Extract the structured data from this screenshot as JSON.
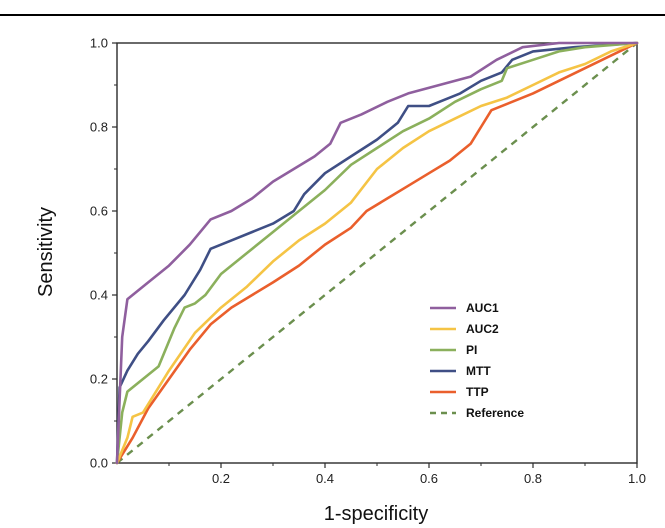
{
  "chart_data": {
    "type": "line",
    "title": "",
    "xlabel": "1-specificity",
    "ylabel": "Sensitivity",
    "xlim": [
      0,
      1
    ],
    "ylim": [
      0,
      1
    ],
    "x_ticks": [
      "0.2",
      "0.4",
      "0.6",
      "0.8",
      "1.0"
    ],
    "y_ticks": [
      "0.0",
      "0.2",
      "0.4",
      "0.6",
      "0.8",
      "1.0"
    ],
    "grid": false,
    "legend_position": "bottom-right",
    "series": [
      {
        "name": "AUC1",
        "color": "#8f5f9e",
        "dash": "solid",
        "points": [
          [
            0,
            0
          ],
          [
            0.005,
            0.15
          ],
          [
            0.01,
            0.3
          ],
          [
            0.02,
            0.39
          ],
          [
            0.03,
            0.4
          ],
          [
            0.06,
            0.43
          ],
          [
            0.1,
            0.47
          ],
          [
            0.14,
            0.52
          ],
          [
            0.18,
            0.58
          ],
          [
            0.22,
            0.6
          ],
          [
            0.26,
            0.63
          ],
          [
            0.3,
            0.67
          ],
          [
            0.34,
            0.7
          ],
          [
            0.38,
            0.73
          ],
          [
            0.41,
            0.76
          ],
          [
            0.43,
            0.81
          ],
          [
            0.47,
            0.83
          ],
          [
            0.52,
            0.86
          ],
          [
            0.56,
            0.88
          ],
          [
            0.62,
            0.9
          ],
          [
            0.68,
            0.92
          ],
          [
            0.73,
            0.96
          ],
          [
            0.78,
            0.99
          ],
          [
            0.85,
            1.0
          ],
          [
            1,
            1
          ]
        ]
      },
      {
        "name": "AUC2",
        "color": "#f5c445",
        "dash": "solid",
        "points": [
          [
            0,
            0
          ],
          [
            0.02,
            0.06
          ],
          [
            0.03,
            0.11
          ],
          [
            0.05,
            0.12
          ],
          [
            0.1,
            0.22
          ],
          [
            0.15,
            0.31
          ],
          [
            0.2,
            0.37
          ],
          [
            0.25,
            0.42
          ],
          [
            0.3,
            0.48
          ],
          [
            0.35,
            0.53
          ],
          [
            0.4,
            0.57
          ],
          [
            0.45,
            0.62
          ],
          [
            0.5,
            0.7
          ],
          [
            0.55,
            0.75
          ],
          [
            0.6,
            0.79
          ],
          [
            0.65,
            0.82
          ],
          [
            0.7,
            0.85
          ],
          [
            0.75,
            0.87
          ],
          [
            0.8,
            0.9
          ],
          [
            0.85,
            0.93
          ],
          [
            0.9,
            0.95
          ],
          [
            0.95,
            0.98
          ],
          [
            1,
            1
          ]
        ]
      },
      {
        "name": "PI",
        "color": "#8bb05c",
        "dash": "solid",
        "points": [
          [
            0,
            0
          ],
          [
            0.01,
            0.12
          ],
          [
            0.02,
            0.17
          ],
          [
            0.05,
            0.2
          ],
          [
            0.08,
            0.23
          ],
          [
            0.11,
            0.32
          ],
          [
            0.13,
            0.37
          ],
          [
            0.15,
            0.38
          ],
          [
            0.17,
            0.4
          ],
          [
            0.2,
            0.45
          ],
          [
            0.25,
            0.5
          ],
          [
            0.3,
            0.55
          ],
          [
            0.35,
            0.6
          ],
          [
            0.4,
            0.65
          ],
          [
            0.45,
            0.71
          ],
          [
            0.5,
            0.75
          ],
          [
            0.55,
            0.79
          ],
          [
            0.6,
            0.82
          ],
          [
            0.65,
            0.86
          ],
          [
            0.7,
            0.89
          ],
          [
            0.74,
            0.91
          ],
          [
            0.75,
            0.94
          ],
          [
            0.8,
            0.96
          ],
          [
            0.85,
            0.98
          ],
          [
            0.9,
            0.99
          ],
          [
            1,
            1
          ]
        ]
      },
      {
        "name": "MTT",
        "color": "#3f4f85",
        "dash": "solid",
        "points": [
          [
            0,
            0
          ],
          [
            0.005,
            0.18
          ],
          [
            0.02,
            0.22
          ],
          [
            0.04,
            0.26
          ],
          [
            0.06,
            0.29
          ],
          [
            0.09,
            0.34
          ],
          [
            0.13,
            0.4
          ],
          [
            0.16,
            0.46
          ],
          [
            0.18,
            0.51
          ],
          [
            0.22,
            0.53
          ],
          [
            0.26,
            0.55
          ],
          [
            0.3,
            0.57
          ],
          [
            0.34,
            0.6
          ],
          [
            0.36,
            0.64
          ],
          [
            0.4,
            0.69
          ],
          [
            0.45,
            0.73
          ],
          [
            0.5,
            0.77
          ],
          [
            0.54,
            0.81
          ],
          [
            0.56,
            0.85
          ],
          [
            0.6,
            0.85
          ],
          [
            0.62,
            0.86
          ],
          [
            0.66,
            0.88
          ],
          [
            0.7,
            0.91
          ],
          [
            0.74,
            0.93
          ],
          [
            0.76,
            0.96
          ],
          [
            0.8,
            0.98
          ],
          [
            0.88,
            0.99
          ],
          [
            1,
            1
          ]
        ]
      },
      {
        "name": "TTP",
        "color": "#ea5f2c",
        "dash": "solid",
        "points": [
          [
            0,
            0
          ],
          [
            0.03,
            0.06
          ],
          [
            0.06,
            0.13
          ],
          [
            0.1,
            0.2
          ],
          [
            0.14,
            0.27
          ],
          [
            0.18,
            0.33
          ],
          [
            0.22,
            0.37
          ],
          [
            0.26,
            0.4
          ],
          [
            0.3,
            0.43
          ],
          [
            0.35,
            0.47
          ],
          [
            0.4,
            0.52
          ],
          [
            0.45,
            0.56
          ],
          [
            0.48,
            0.6
          ],
          [
            0.52,
            0.63
          ],
          [
            0.56,
            0.66
          ],
          [
            0.6,
            0.69
          ],
          [
            0.64,
            0.72
          ],
          [
            0.68,
            0.76
          ],
          [
            0.7,
            0.8
          ],
          [
            0.72,
            0.84
          ],
          [
            0.76,
            0.86
          ],
          [
            0.8,
            0.88
          ],
          [
            0.85,
            0.91
          ],
          [
            0.9,
            0.94
          ],
          [
            0.95,
            0.97
          ],
          [
            1,
            1
          ]
        ]
      },
      {
        "name": "Reference",
        "color": "#6b8f4e",
        "dash": "dashed",
        "points": [
          [
            0,
            0
          ],
          [
            1,
            1
          ]
        ]
      }
    ]
  }
}
